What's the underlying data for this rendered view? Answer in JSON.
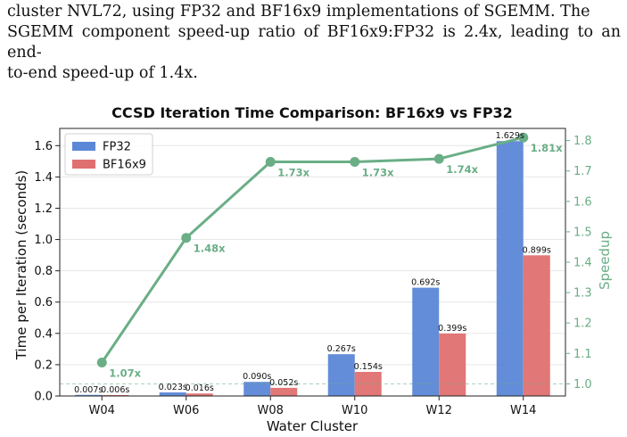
{
  "paragraph": {
    "lines": [
      "cluster NVL72, using FP32 and BF16x9 implementations of SGEMM. The",
      "SGEMM component speed-up ratio of BF16x9:FP32 is 2.4x, leading to an end-",
      "to-end speed-up of 1.4x."
    ]
  },
  "chart_data": {
    "type": "bar",
    "title": "CCSD Iteration Time Comparison: BF16x9 vs FP32",
    "xlabel": "Water Cluster",
    "ylabel": "Time per Iteration (seconds)",
    "y2label": "Speedup",
    "categories": [
      "W04",
      "W06",
      "W08",
      "W10",
      "W12",
      "W14"
    ],
    "series": [
      {
        "name": "FP32",
        "color": "#5b87d6",
        "values": [
          0.007,
          0.023,
          0.09,
          0.267,
          0.692,
          1.629
        ],
        "labels": [
          "0.007s",
          "0.023s",
          "0.090s",
          "0.267s",
          "0.692s",
          "1.629s"
        ]
      },
      {
        "name": "BF16x9",
        "color": "#e07070",
        "values": [
          0.006,
          0.016,
          0.052,
          0.154,
          0.399,
          0.899
        ],
        "labels": [
          "0.006s",
          "0.016s",
          "0.052s",
          "0.154s",
          "0.399s",
          "0.899s"
        ]
      }
    ],
    "speedup": {
      "color": "#6aae86",
      "values": [
        1.07,
        1.48,
        1.73,
        1.73,
        1.74,
        1.81
      ],
      "labels": [
        "1.07x",
        "1.48x",
        "1.73x",
        "1.73x",
        "1.74x",
        "1.81x"
      ]
    },
    "ylim": [
      0,
      1.71
    ],
    "yticks": [
      0.0,
      0.2,
      0.4,
      0.6,
      0.8,
      1.0,
      1.2,
      1.4,
      1.6
    ],
    "yticklabels": [
      "0.0",
      "0.2",
      "0.4",
      "0.6",
      "0.8",
      "1.0",
      "1.2",
      "1.4",
      "1.6"
    ],
    "y2lim": [
      0.96,
      1.84
    ],
    "y2ticks": [
      1.0,
      1.1,
      1.2,
      1.3,
      1.4,
      1.5,
      1.6,
      1.7,
      1.8
    ],
    "y2ticklabels": [
      "1.0",
      "1.1",
      "1.2",
      "1.3",
      "1.4",
      "1.5",
      "1.6",
      "1.7",
      "1.8"
    ],
    "baseline": 1.0,
    "grid": true,
    "legend": "top-left"
  }
}
